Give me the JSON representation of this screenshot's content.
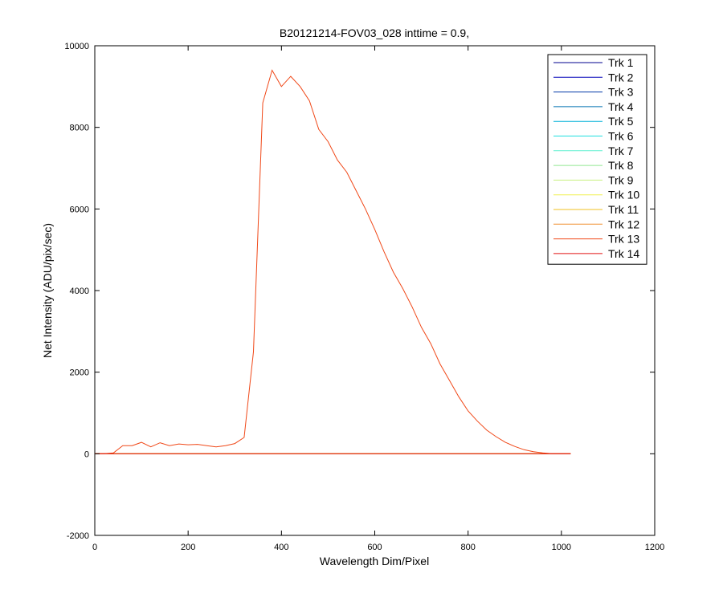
{
  "chart_data": {
    "type": "line",
    "title": "B20121214-FOV03_028 inttime = 0.9,",
    "xlabel": "Wavelength Dim/Pixel",
    "ylabel": "Net Intensity (ADU/pix/sec)",
    "xlim": [
      0,
      1200
    ],
    "ylim": [
      -2000,
      10000
    ],
    "xticks": [
      0,
      200,
      400,
      600,
      800,
      1000,
      1200
    ],
    "yticks": [
      -2000,
      0,
      2000,
      4000,
      6000,
      8000,
      10000
    ],
    "grid": false,
    "legend": "northeast",
    "x": [
      0,
      20,
      40,
      60,
      80,
      100,
      120,
      140,
      160,
      180,
      200,
      220,
      240,
      260,
      280,
      300,
      320,
      340,
      360,
      380,
      400,
      420,
      440,
      460,
      480,
      500,
      520,
      540,
      560,
      580,
      600,
      620,
      640,
      660,
      680,
      700,
      720,
      740,
      760,
      780,
      800,
      820,
      840,
      860,
      880,
      900,
      920,
      940,
      960,
      980,
      1000,
      1020
    ],
    "series": [
      {
        "name": "Trk 1",
        "color": "#00008f",
        "values": [
          0,
          0,
          0,
          0,
          0,
          0,
          0,
          0,
          0,
          0,
          0,
          0,
          0,
          0,
          0,
          0,
          0,
          0,
          0,
          0,
          0,
          0,
          0,
          0,
          0,
          0,
          0,
          0,
          0,
          0,
          0,
          0,
          0,
          0,
          0,
          0,
          0,
          0,
          0,
          0,
          0,
          0,
          0,
          0,
          0,
          0,
          0,
          0,
          0,
          0,
          0,
          0
        ]
      },
      {
        "name": "Trk 2",
        "color": "#0000b8",
        "values": [
          0,
          0,
          0,
          0,
          0,
          0,
          0,
          0,
          0,
          0,
          0,
          0,
          0,
          0,
          0,
          0,
          0,
          0,
          0,
          0,
          0,
          0,
          0,
          0,
          0,
          0,
          0,
          0,
          0,
          0,
          0,
          0,
          0,
          0,
          0,
          0,
          0,
          0,
          0,
          0,
          0,
          0,
          0,
          0,
          0,
          0,
          0,
          0,
          0,
          0,
          0,
          0
        ]
      },
      {
        "name": "Trk 3",
        "color": "#0038a8",
        "values": [
          0,
          0,
          0,
          0,
          0,
          0,
          0,
          0,
          0,
          0,
          0,
          0,
          0,
          0,
          0,
          0,
          0,
          0,
          0,
          0,
          0,
          0,
          0,
          0,
          0,
          0,
          0,
          0,
          0,
          0,
          0,
          0,
          0,
          0,
          0,
          0,
          0,
          0,
          0,
          0,
          0,
          0,
          0,
          0,
          0,
          0,
          0,
          0,
          0,
          0,
          0,
          0
        ]
      },
      {
        "name": "Trk 4",
        "color": "#0070b0",
        "values": [
          0,
          0,
          0,
          0,
          0,
          0,
          0,
          0,
          0,
          0,
          0,
          0,
          0,
          0,
          0,
          0,
          0,
          0,
          0,
          0,
          0,
          0,
          0,
          0,
          0,
          0,
          0,
          0,
          0,
          0,
          0,
          0,
          0,
          0,
          0,
          0,
          0,
          0,
          0,
          0,
          0,
          0,
          0,
          0,
          0,
          0,
          0,
          0,
          0,
          0,
          0,
          0
        ]
      },
      {
        "name": "Trk 5",
        "color": "#00b0d8",
        "values": [
          0,
          0,
          0,
          0,
          0,
          0,
          0,
          0,
          0,
          0,
          0,
          0,
          0,
          0,
          0,
          0,
          0,
          0,
          0,
          0,
          0,
          0,
          0,
          0,
          0,
          0,
          0,
          0,
          0,
          0,
          0,
          0,
          0,
          0,
          0,
          0,
          0,
          0,
          0,
          0,
          0,
          0,
          0,
          0,
          0,
          0,
          0,
          0,
          0,
          0,
          0,
          0
        ]
      },
      {
        "name": "Trk 6",
        "color": "#20e0e0",
        "values": [
          0,
          0,
          0,
          0,
          0,
          0,
          0,
          0,
          0,
          0,
          0,
          0,
          0,
          0,
          0,
          0,
          0,
          0,
          0,
          0,
          0,
          0,
          0,
          0,
          0,
          0,
          0,
          0,
          0,
          0,
          0,
          0,
          0,
          0,
          0,
          0,
          0,
          0,
          0,
          0,
          0,
          0,
          0,
          0,
          0,
          0,
          0,
          0,
          0,
          0,
          0,
          0
        ]
      },
      {
        "name": "Trk 7",
        "color": "#60f0d0",
        "values": [
          0,
          0,
          0,
          0,
          0,
          0,
          0,
          0,
          0,
          0,
          0,
          0,
          0,
          0,
          0,
          0,
          0,
          0,
          0,
          0,
          0,
          0,
          0,
          0,
          0,
          0,
          0,
          0,
          0,
          0,
          0,
          0,
          0,
          0,
          0,
          0,
          0,
          0,
          0,
          0,
          0,
          0,
          0,
          0,
          0,
          0,
          0,
          0,
          0,
          0,
          0,
          0
        ]
      },
      {
        "name": "Trk 8",
        "color": "#90e890",
        "values": [
          0,
          0,
          0,
          0,
          0,
          0,
          0,
          0,
          0,
          0,
          0,
          0,
          0,
          0,
          0,
          0,
          0,
          0,
          0,
          0,
          0,
          0,
          0,
          0,
          0,
          0,
          0,
          0,
          0,
          0,
          0,
          0,
          0,
          0,
          0,
          0,
          0,
          0,
          0,
          0,
          0,
          0,
          0,
          0,
          0,
          0,
          0,
          0,
          0,
          0,
          0,
          0
        ]
      },
      {
        "name": "Trk 9",
        "color": "#c8f080",
        "values": [
          0,
          0,
          0,
          0,
          0,
          0,
          0,
          0,
          0,
          0,
          0,
          0,
          0,
          0,
          0,
          0,
          0,
          0,
          0,
          0,
          0,
          0,
          0,
          0,
          0,
          0,
          0,
          0,
          0,
          0,
          0,
          0,
          0,
          0,
          0,
          0,
          0,
          0,
          0,
          0,
          0,
          0,
          0,
          0,
          0,
          0,
          0,
          0,
          0,
          0,
          0,
          0
        ]
      },
      {
        "name": "Trk 10",
        "color": "#f0f050",
        "values": [
          0,
          0,
          0,
          0,
          0,
          0,
          0,
          0,
          0,
          0,
          0,
          0,
          0,
          0,
          0,
          0,
          0,
          0,
          0,
          0,
          0,
          0,
          0,
          0,
          0,
          0,
          0,
          0,
          0,
          0,
          0,
          0,
          0,
          0,
          0,
          0,
          0,
          0,
          0,
          0,
          0,
          0,
          0,
          0,
          0,
          0,
          0,
          0,
          0,
          0,
          0,
          0
        ]
      },
      {
        "name": "Trk 11",
        "color": "#f0c020",
        "values": [
          0,
          0,
          0,
          0,
          0,
          0,
          0,
          0,
          0,
          0,
          0,
          0,
          0,
          0,
          0,
          0,
          0,
          0,
          0,
          0,
          0,
          0,
          0,
          0,
          0,
          0,
          0,
          0,
          0,
          0,
          0,
          0,
          0,
          0,
          0,
          0,
          0,
          0,
          0,
          0,
          0,
          0,
          0,
          0,
          0,
          0,
          0,
          0,
          0,
          0,
          0,
          0
        ]
      },
      {
        "name": "Trk 12",
        "color": "#f09030",
        "values": [
          0,
          0,
          0,
          0,
          0,
          0,
          0,
          0,
          0,
          0,
          0,
          0,
          0,
          0,
          0,
          0,
          0,
          0,
          0,
          0,
          0,
          0,
          0,
          0,
          0,
          0,
          0,
          0,
          0,
          0,
          0,
          0,
          0,
          0,
          0,
          0,
          0,
          0,
          0,
          0,
          0,
          0,
          0,
          0,
          0,
          0,
          0,
          0,
          0,
          0,
          0,
          0
        ]
      },
      {
        "name": "Trk 13",
        "color": "#f04818",
        "values": [
          0,
          0,
          20,
          200,
          200,
          280,
          170,
          270,
          200,
          240,
          220,
          230,
          200,
          170,
          200,
          250,
          400,
          2500,
          8600,
          9400,
          9000,
          9250,
          9000,
          8650,
          7950,
          7650,
          7200,
          6900,
          6450,
          6000,
          5500,
          4950,
          4450,
          4050,
          3600,
          3100,
          2700,
          2200,
          1800,
          1400,
          1050,
          800,
          580,
          420,
          280,
          180,
          100,
          50,
          20,
          0,
          0,
          0
        ]
      },
      {
        "name": "Trk 14",
        "color": "#e01010",
        "values": [
          0,
          0,
          0,
          0,
          0,
          0,
          0,
          0,
          0,
          0,
          0,
          0,
          0,
          0,
          0,
          0,
          0,
          0,
          0,
          0,
          0,
          0,
          0,
          0,
          0,
          0,
          0,
          0,
          0,
          0,
          0,
          0,
          0,
          0,
          0,
          0,
          0,
          0,
          0,
          0,
          0,
          0,
          0,
          0,
          0,
          0,
          0,
          0,
          0,
          0,
          0,
          0
        ]
      }
    ]
  }
}
